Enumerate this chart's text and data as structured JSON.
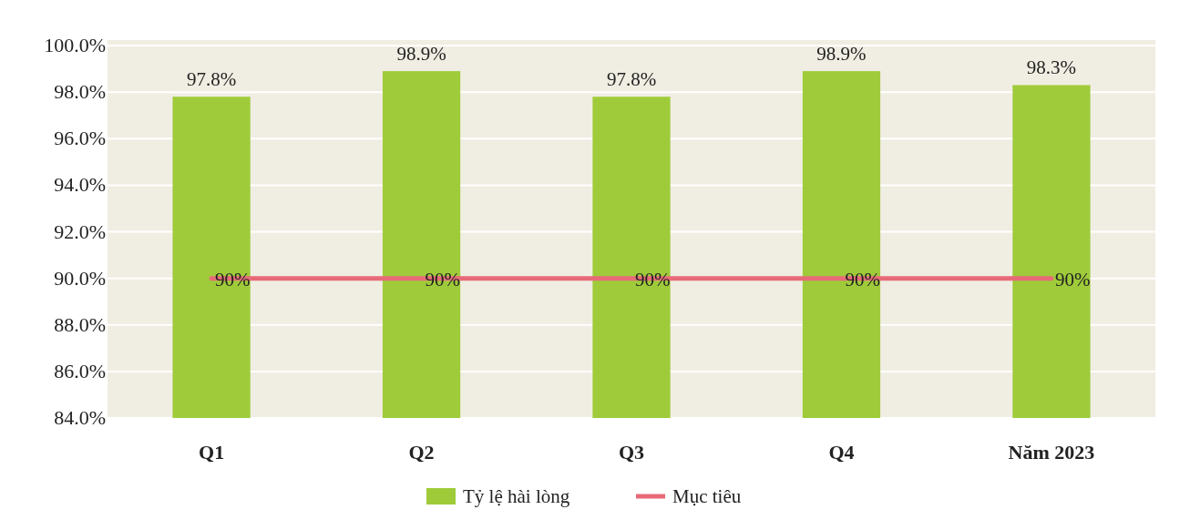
{
  "chart_data": {
    "type": "bar",
    "categories": [
      "Q1",
      "Q2",
      "Q3",
      "Q4",
      "Năm 2023"
    ],
    "series": [
      {
        "name": "Tỷ lệ hài lòng",
        "color": "#9fcb3a",
        "values": [
          97.8,
          98.9,
          97.8,
          98.9,
          98.3
        ],
        "value_labels": [
          "97.8%",
          "98.9%",
          "97.8%",
          "98.9%",
          "98.3%"
        ]
      },
      {
        "name": "Mục tiêu",
        "type": "line",
        "color": "#e86a78",
        "values": [
          90,
          90,
          90,
          90,
          90
        ],
        "value_labels": [
          "90%",
          "90%",
          "90%",
          "90%",
          "90%"
        ]
      }
    ],
    "ylim": [
      84,
      100
    ],
    "yticks": [
      {
        "value": 84,
        "label": "84.0%"
      },
      {
        "value": 86,
        "label": "86.0%"
      },
      {
        "value": 88,
        "label": "88.0%"
      },
      {
        "value": 90,
        "label": "90.0%"
      },
      {
        "value": 92,
        "label": "92.0%"
      },
      {
        "value": 94,
        "label": "94.0%"
      },
      {
        "value": 96,
        "label": "96.0%"
      },
      {
        "value": 98,
        "label": "98.0%"
      },
      {
        "value": 100,
        "label": "100.0%"
      }
    ],
    "grid": "y",
    "legend": "bottom",
    "marker": "none",
    "line_style": "solid"
  }
}
